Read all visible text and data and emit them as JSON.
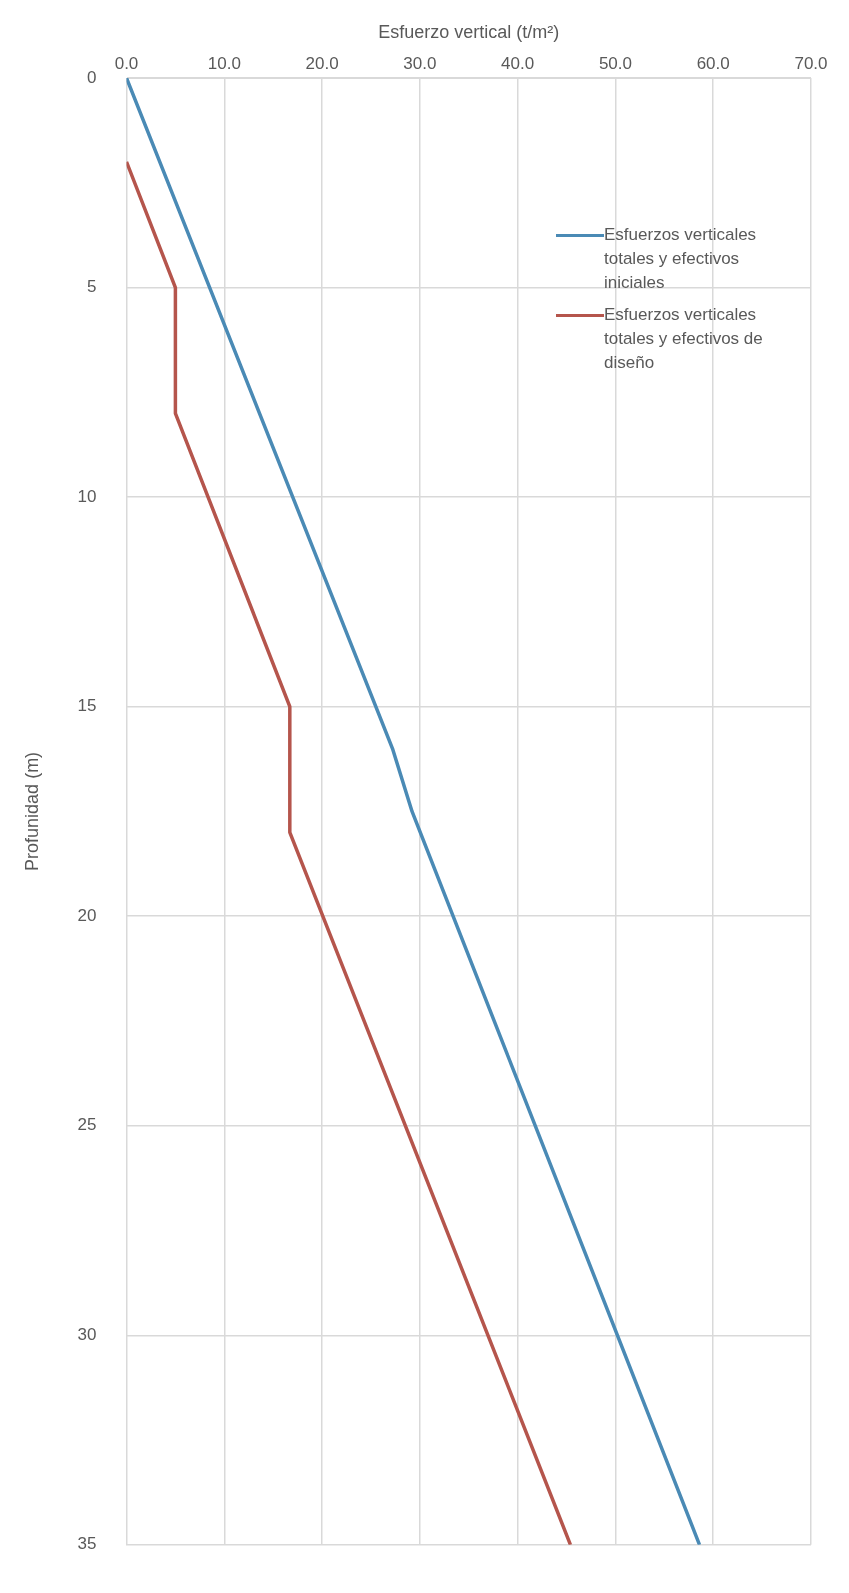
{
  "chart_data": {
    "type": "line",
    "xlabel": "Esfuerzo vertical (t/m²)",
    "ylabel": "Profunidad (m)",
    "xlim": [
      0,
      70
    ],
    "xticks": [
      {
        "value": 0,
        "label": "0.0"
      },
      {
        "value": 10,
        "label": "10.0"
      },
      {
        "value": 20,
        "label": "20.0"
      },
      {
        "value": 30,
        "label": "30.0"
      },
      {
        "value": 40,
        "label": "40.0"
      },
      {
        "value": 50,
        "label": "50.0"
      },
      {
        "value": 60,
        "label": "60.0"
      },
      {
        "value": 70,
        "label": "70.0"
      }
    ],
    "ylim": [
      35,
      0
    ],
    "yticks": [
      0,
      5,
      10,
      15,
      20,
      25,
      30,
      35
    ],
    "grid": true,
    "legend": "top right",
    "marker": "none",
    "line_style": "solid",
    "series": [
      {
        "name": "Esfuerzos verticales totales y efectivos iniciales",
        "color": "#4a8ab5",
        "x": [
          0,
          27.2,
          29.2,
          58.6
        ],
        "values": [
          0,
          16,
          17.5,
          35
        ]
      },
      {
        "name": "Esfuerzos verticales totales y efectivos de diseño",
        "color": "#b5554c",
        "x": [
          0,
          5,
          5,
          16.7,
          16.7,
          45.4
        ],
        "values": [
          2,
          5,
          8,
          15,
          18,
          35
        ]
      }
    ]
  }
}
